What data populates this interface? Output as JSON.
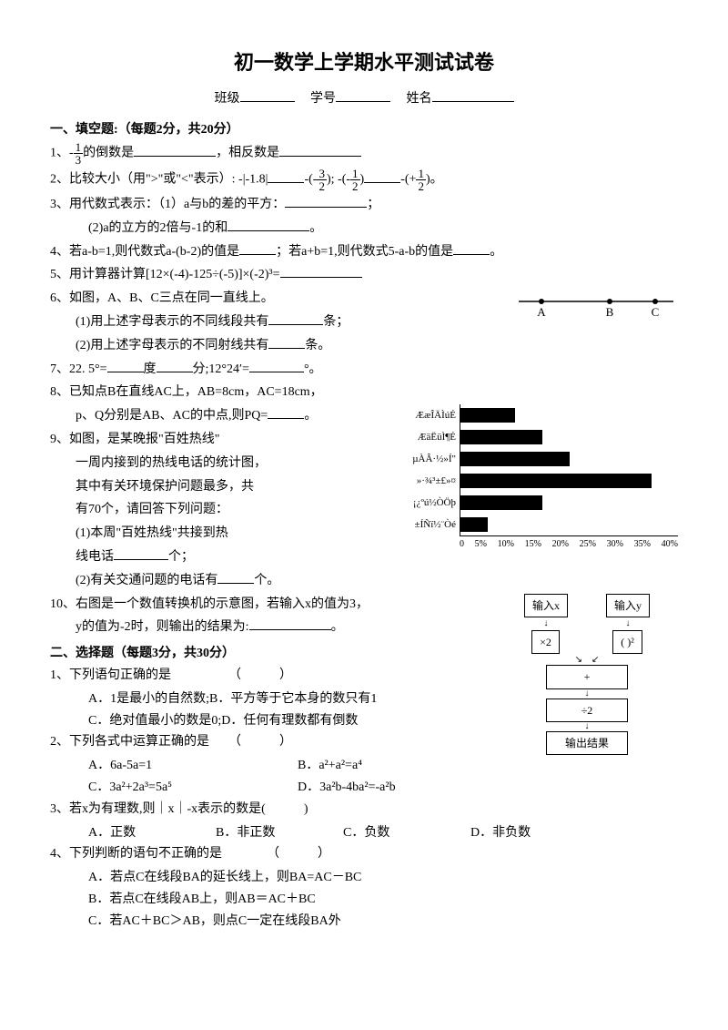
{
  "title": "初一数学上学期水平测试试卷",
  "header": {
    "class_label": "班级",
    "id_label": "学号",
    "name_label": "姓名"
  },
  "section1": {
    "title": "一、填空题:（每题2分，共20分）",
    "q1_a": "1、",
    "q1_b": "的倒数是",
    "q1_c": "，相反数是",
    "q2_a": "2、比较大小（用\">\"或\"<\"表示）: -|-1.8|",
    "q2_b": "-(-",
    "q2_c": "); -(-",
    "q2_d": ")",
    "q2_e": "-(+",
    "q2_f": ")。",
    "q3_a": "3、用代数式表示：（1）a与b的差的平方：",
    "q3_b": "；",
    "q3_c": "(2)a的立方的2倍与-1的和",
    "q3_d": "。",
    "q4_a": "4、若a-b=1,则代数式a-(b-2)的值是",
    "q4_b": "；若a+b=1,则代数式5-a-b的值是",
    "q4_c": "。",
    "q5": "5、用计算器计算[12×(-4)-125÷(-5)]×(-2)³=",
    "q6_a": "6、如图，A、B、C三点在同一直线上。",
    "q6_b": "(1)用上述字母表示的不同线段共有",
    "q6_c": "条；",
    "q6_d": "(2)用上述字母表示的不同射线共有",
    "q6_e": "条。",
    "q7_a": "7、22. 5°=",
    "q7_b": "度",
    "q7_c": "分;12°24′=",
    "q7_d": "°。",
    "q8_a": "8、已知点B在直线AC上，AB=8cm，AC=18cm，",
    "q8_b": "p、Q分别是AB、AC的中点,则PQ=",
    "q8_c": "。",
    "q9_a": "9、如图，是某晚报\"百姓热线\"",
    "q9_b": "一周内接到的热线电话的统计图，",
    "q9_c": "其中有关环境保护问题最多，共",
    "q9_d": "有70个，请回答下列问题：",
    "q9_e": "(1)本周\"百姓热线\"共接到热",
    "q9_f": "线电话",
    "q9_g": "个；",
    "q9_h": "(2)有关交通问题的电话有",
    "q9_i": "个。",
    "q10_a": "10、右图是一个数值转换机的示意图，若输入x的值为3，",
    "q10_b": "y的值为-2时，则输出的结果为:",
    "q10_c": "。"
  },
  "chart": {
    "labels": [
      "ÆæÎÄÌúÉ",
      "ÆäËüÌ¶É",
      "µÀÂ·½»Í\"",
      "»·¾³±£»¤",
      "¡¿ºú½ÒÖþ",
      "±ÍÑï½¨Òé"
    ],
    "values": [
      10,
      15,
      20,
      35,
      15,
      5
    ],
    "ticks": [
      "0",
      "5%",
      "10%",
      "15%",
      "20%",
      "25%",
      "30%",
      "35%",
      "40%"
    ],
    "max": 40,
    "bar_color": "#000000"
  },
  "flowchart": {
    "input_x": "输入x",
    "input_y": "输入y",
    "op1": "×2",
    "op2": "( )²",
    "add": "+",
    "div": "÷2",
    "output": "输出结果"
  },
  "line_diagram": {
    "points": [
      "A",
      "B",
      "C"
    ]
  },
  "section2": {
    "title": "二、选择题（每题3分，共30分）",
    "q1": "1、下列语句正确的是　　　　　（　　　）",
    "q1_a": "A．1是最小的自然数;B．平方等于它本身的数只有1",
    "q1_c": "C．绝对值最小的数是0;D．任何有理数都有倒数",
    "q2": "2、下列各式中运算正确的是　　（　　　）",
    "q2_a": "A．6a-5a=1",
    "q2_b": "B．a²+a²=a⁴",
    "q2_c": "C．3a²+2a³=5a⁵",
    "q2_d": "D．3a²b-4ba²=-a²b",
    "q3": "3、若x为有理数,则｜x｜-x表示的数是(　　　)",
    "q3_a": "A．正数",
    "q3_b": "B．非正数",
    "q3_c": "C．负数",
    "q3_d": "D．非负数",
    "q4": "4、下列判断的语句不正确的是　　　　（　　　）",
    "q4_a": "A．若点C在线段BA的延长线上，则BA=AC－BC",
    "q4_b": "B．若点C在线段AB上，则AB＝AC＋BC",
    "q4_c": "C．若AC＋BC＞AB，则点C一定在线段BA外"
  }
}
